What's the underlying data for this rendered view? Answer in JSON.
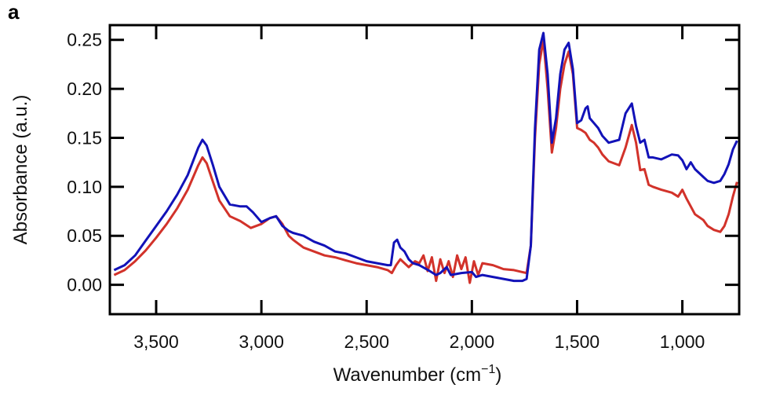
{
  "panel_label": "a",
  "chart_data": {
    "type": "line",
    "title": "",
    "xlabel": "Wavenumber (cm",
    "xlabel_sup": "−1",
    "xlabel_end": ")",
    "ylabel": "Absorbance (a.u.)",
    "xlim": [
      3720,
      730
    ],
    "ylim": [
      -0.03,
      0.265
    ],
    "x_reversed": true,
    "grid": false,
    "legend": "none",
    "xticks": [
      {
        "value": 3500,
        "label": "3,500"
      },
      {
        "value": 3000,
        "label": "3,000"
      },
      {
        "value": 2500,
        "label": "2,500"
      },
      {
        "value": 2000,
        "label": "2,000"
      },
      {
        "value": 1500,
        "label": "1,500"
      },
      {
        "value": 1000,
        "label": "1,000"
      }
    ],
    "yticks": [
      {
        "value": 0.0,
        "label": "0.00"
      },
      {
        "value": 0.05,
        "label": "0.05"
      },
      {
        "value": 0.1,
        "label": "0.10"
      },
      {
        "value": 0.15,
        "label": "0.15"
      },
      {
        "value": 0.2,
        "label": "0.20"
      },
      {
        "value": 0.25,
        "label": "0.25"
      }
    ],
    "series": [
      {
        "name": "blue spectrum",
        "color": "#1212b8",
        "x": [
          3700,
          3650,
          3600,
          3550,
          3500,
          3450,
          3400,
          3350,
          3300,
          3280,
          3260,
          3230,
          3200,
          3150,
          3100,
          3070,
          3040,
          3000,
          2960,
          2930,
          2900,
          2870,
          2850,
          2800,
          2750,
          2700,
          2650,
          2600,
          2550,
          2500,
          2450,
          2400,
          2385,
          2370,
          2355,
          2340,
          2320,
          2300,
          2280,
          2250,
          2200,
          2170,
          2150,
          2120,
          2100,
          2050,
          2000,
          1980,
          1950,
          1900,
          1850,
          1800,
          1760,
          1740,
          1720,
          1700,
          1680,
          1660,
          1640,
          1620,
          1600,
          1580,
          1560,
          1540,
          1520,
          1500,
          1480,
          1460,
          1450,
          1440,
          1420,
          1400,
          1380,
          1350,
          1300,
          1270,
          1240,
          1220,
          1200,
          1180,
          1160,
          1140,
          1100,
          1050,
          1020,
          1000,
          980,
          960,
          940,
          900,
          880,
          850,
          820,
          800,
          780,
          760,
          740
        ],
        "y": [
          0.015,
          0.02,
          0.03,
          0.045,
          0.06,
          0.075,
          0.092,
          0.112,
          0.14,
          0.148,
          0.142,
          0.122,
          0.1,
          0.082,
          0.08,
          0.08,
          0.074,
          0.064,
          0.068,
          0.07,
          0.06,
          0.055,
          0.053,
          0.05,
          0.044,
          0.04,
          0.034,
          0.032,
          0.028,
          0.024,
          0.022,
          0.02,
          0.02,
          0.043,
          0.046,
          0.038,
          0.034,
          0.026,
          0.022,
          0.02,
          0.014,
          0.01,
          0.012,
          0.018,
          0.01,
          0.012,
          0.013,
          0.008,
          0.01,
          0.008,
          0.006,
          0.004,
          0.004,
          0.006,
          0.04,
          0.16,
          0.24,
          0.257,
          0.215,
          0.145,
          0.17,
          0.215,
          0.24,
          0.247,
          0.22,
          0.165,
          0.168,
          0.18,
          0.182,
          0.17,
          0.165,
          0.16,
          0.152,
          0.145,
          0.148,
          0.175,
          0.185,
          0.162,
          0.145,
          0.148,
          0.13,
          0.13,
          0.128,
          0.133,
          0.132,
          0.127,
          0.118,
          0.125,
          0.118,
          0.11,
          0.106,
          0.104,
          0.106,
          0.113,
          0.123,
          0.138,
          0.147
        ]
      },
      {
        "name": "red spectrum",
        "color": "#d2322a",
        "x": [
          3700,
          3650,
          3600,
          3550,
          3500,
          3450,
          3400,
          3350,
          3300,
          3280,
          3260,
          3230,
          3200,
          3150,
          3100,
          3050,
          3000,
          2960,
          2930,
          2900,
          2870,
          2850,
          2800,
          2750,
          2700,
          2650,
          2600,
          2550,
          2500,
          2450,
          2400,
          2380,
          2360,
          2340,
          2300,
          2270,
          2250,
          2230,
          2210,
          2190,
          2170,
          2150,
          2130,
          2110,
          2090,
          2070,
          2050,
          2030,
          2010,
          1990,
          1970,
          1950,
          1900,
          1850,
          1800,
          1760,
          1740,
          1720,
          1700,
          1680,
          1660,
          1640,
          1620,
          1600,
          1580,
          1560,
          1540,
          1520,
          1500,
          1480,
          1460,
          1440,
          1420,
          1400,
          1380,
          1350,
          1300,
          1270,
          1240,
          1220,
          1200,
          1180,
          1160,
          1140,
          1100,
          1050,
          1020,
          1000,
          980,
          960,
          940,
          900,
          880,
          850,
          820,
          800,
          780,
          760,
          740
        ],
        "y": [
          0.01,
          0.015,
          0.024,
          0.035,
          0.048,
          0.062,
          0.078,
          0.097,
          0.122,
          0.13,
          0.124,
          0.105,
          0.086,
          0.07,
          0.065,
          0.058,
          0.062,
          0.068,
          0.07,
          0.062,
          0.05,
          0.046,
          0.038,
          0.034,
          0.03,
          0.028,
          0.025,
          0.022,
          0.02,
          0.018,
          0.015,
          0.012,
          0.02,
          0.026,
          0.018,
          0.024,
          0.022,
          0.03,
          0.014,
          0.028,
          0.004,
          0.026,
          0.012,
          0.024,
          0.008,
          0.03,
          0.016,
          0.028,
          0.002,
          0.024,
          0.01,
          0.022,
          0.02,
          0.016,
          0.015,
          0.013,
          0.012,
          0.04,
          0.15,
          0.225,
          0.25,
          0.2,
          0.135,
          0.16,
          0.2,
          0.225,
          0.238,
          0.215,
          0.16,
          0.158,
          0.155,
          0.148,
          0.145,
          0.14,
          0.133,
          0.126,
          0.122,
          0.14,
          0.163,
          0.145,
          0.117,
          0.118,
          0.102,
          0.1,
          0.097,
          0.094,
          0.09,
          0.097,
          0.088,
          0.08,
          0.072,
          0.066,
          0.06,
          0.056,
          0.054,
          0.06,
          0.072,
          0.09,
          0.105
        ]
      }
    ]
  }
}
